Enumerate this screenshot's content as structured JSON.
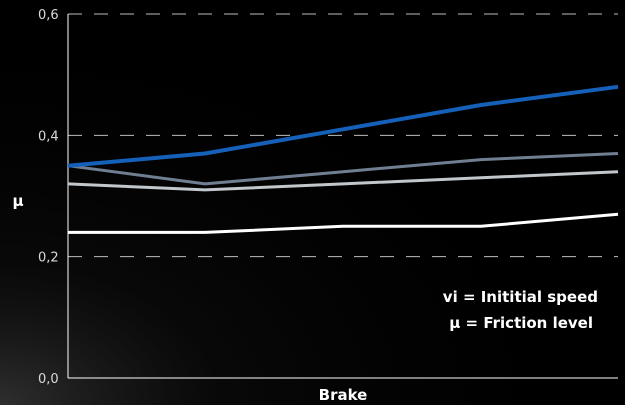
{
  "chart_data": {
    "type": "line",
    "title": "",
    "xlabel": "Brake",
    "ylabel": "μ",
    "ylim": [
      0,
      0.6
    ],
    "y_ticks": [
      {
        "value": 0.0,
        "label": "0,0"
      },
      {
        "value": 0.2,
        "label": "0,2"
      },
      {
        "value": 0.4,
        "label": "0,4"
      },
      {
        "value": 0.6,
        "label": "0,6"
      }
    ],
    "x": [
      1,
      2,
      3,
      4,
      5
    ],
    "grid": "horizontal dashed",
    "series": [
      {
        "values": [
          0.35,
          0.37,
          0.41,
          0.45,
          0.48
        ],
        "color": "#1560b8"
      },
      {
        "values": [
          0.35,
          0.32,
          0.34,
          0.36,
          0.37
        ],
        "color": "#6f7f91"
      },
      {
        "values": [
          0.32,
          0.31,
          0.32,
          0.33,
          0.34
        ],
        "color": "#c2c7cc"
      },
      {
        "values": [
          0.24,
          0.24,
          0.25,
          0.25,
          0.27
        ],
        "color": "#ffffff"
      }
    ],
    "annotations": [
      "vi = Inititial speed",
      "μ = Friction level"
    ]
  },
  "colors": {
    "background": "#000000",
    "gridline": "#bdbdbd",
    "axis": "#ffffff"
  }
}
